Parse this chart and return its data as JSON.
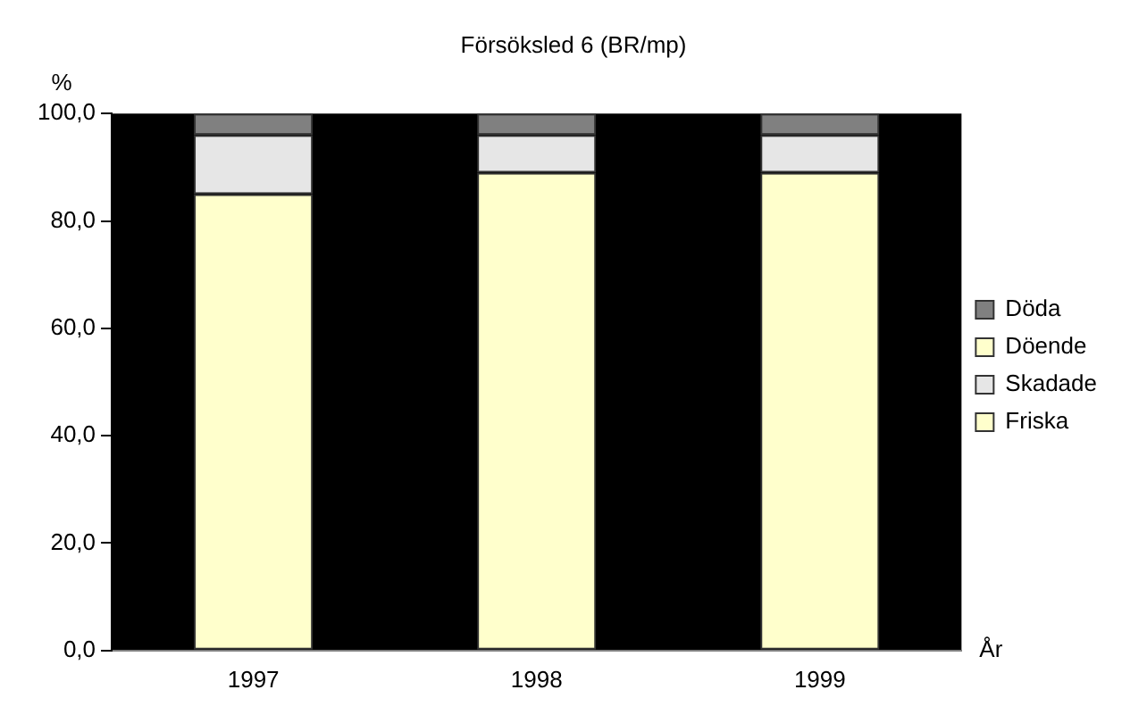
{
  "chart_data": {
    "type": "bar",
    "title": "Försöksled 6 (BR/mp)",
    "xlabel": "År",
    "ylabel": "%",
    "categories": [
      "1997",
      "1998",
      "1999"
    ],
    "stacked": true,
    "legend": "right",
    "grid": false,
    "series": [
      {
        "name": "Friska",
        "color": "#ffffcc",
        "values": [
          85,
          89,
          89
        ]
      },
      {
        "name": "Skadade",
        "color": "#e6e6e6",
        "values": [
          11,
          7,
          7
        ]
      },
      {
        "name": "Döende",
        "color": "#ffffcc",
        "values": [
          0,
          0,
          0
        ]
      },
      {
        "name": "Döda",
        "color": "#808080",
        "values": [
          4,
          4,
          4
        ]
      }
    ],
    "ylim": [
      0,
      100
    ],
    "yticks": [
      {
        "value": 0,
        "label": "0,0"
      },
      {
        "value": 20,
        "label": "20,0"
      },
      {
        "value": 40,
        "label": "40,0"
      },
      {
        "value": 60,
        "label": "60,0"
      },
      {
        "value": 80,
        "label": "80,0"
      },
      {
        "value": 100,
        "label": "100,0"
      }
    ]
  }
}
